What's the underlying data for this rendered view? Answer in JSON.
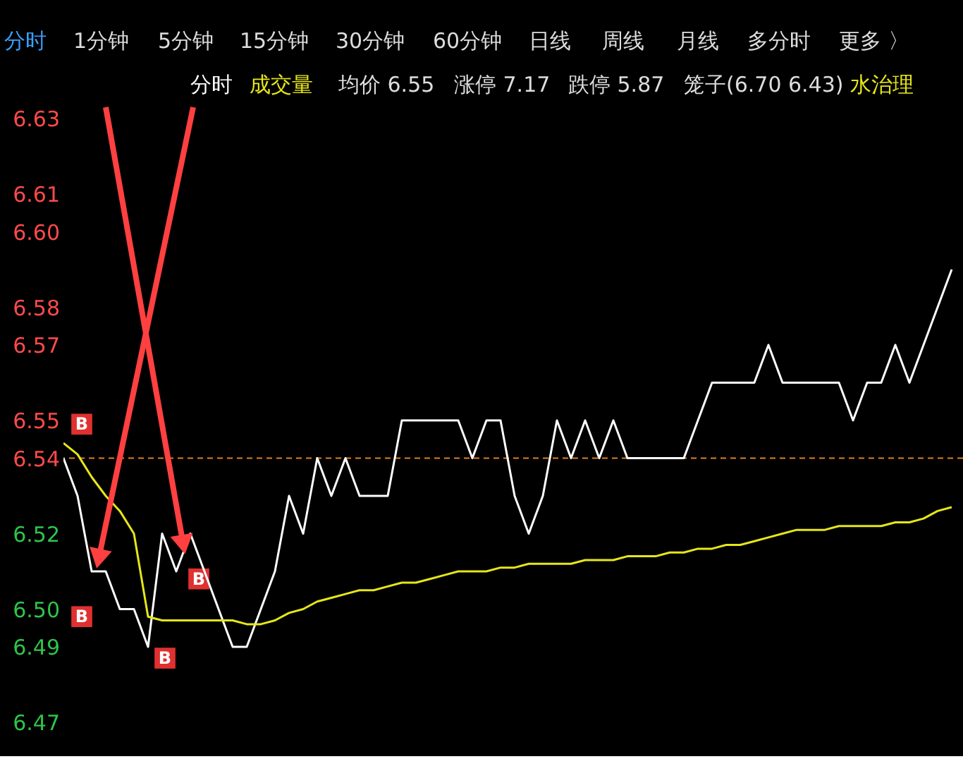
{
  "chart_data": {
    "type": "line",
    "categories": [
      null,
      null,
      null,
      null,
      null,
      null,
      null,
      null,
      null,
      null,
      null,
      null,
      null,
      null,
      null,
      null,
      null,
      null,
      null,
      null,
      null,
      null,
      null,
      null,
      null,
      null,
      null,
      null,
      null,
      null,
      null,
      null,
      null,
      null,
      null,
      null,
      null,
      null,
      null,
      null,
      null,
      null,
      null,
      null,
      null,
      null,
      null,
      null,
      null,
      null,
      null,
      null,
      null,
      null,
      null,
      null,
      null,
      null,
      null,
      null,
      null,
      null,
      null,
      null
    ],
    "series": [
      {
        "color": "#ffffff",
        "values": [
          6.54,
          6.53,
          6.51,
          6.51,
          6.5,
          6.5,
          6.49,
          6.52,
          6.51,
          6.52,
          6.51,
          6.5,
          6.49,
          6.49,
          6.5,
          6.51,
          6.53,
          6.52,
          6.54,
          6.53,
          6.54,
          6.53,
          6.53,
          6.53,
          6.55,
          6.55,
          6.55,
          6.55,
          6.55,
          6.54,
          6.55,
          6.55,
          6.53,
          6.52,
          6.53,
          6.55,
          6.54,
          6.55,
          6.54,
          6.55,
          6.54,
          6.54,
          6.54,
          6.54,
          6.54,
          6.55,
          6.56,
          6.56,
          6.56,
          6.56,
          6.57,
          6.56,
          6.56,
          6.56,
          6.56,
          6.56,
          6.55,
          6.56,
          6.56,
          6.57,
          6.56,
          6.57,
          6.58,
          6.59
        ]
      },
      {
        "color": "#e6e619",
        "values": [
          6.544,
          6.541,
          6.535,
          6.53,
          6.526,
          6.52,
          6.498,
          6.497,
          6.497,
          6.497,
          6.497,
          6.497,
          6.497,
          6.496,
          6.496,
          6.497,
          6.499,
          6.5,
          6.502,
          6.503,
          6.504,
          6.505,
          6.505,
          6.506,
          6.507,
          6.507,
          6.508,
          6.509,
          6.51,
          6.51,
          6.51,
          6.511,
          6.511,
          6.512,
          6.512,
          6.512,
          6.512,
          6.513,
          6.513,
          6.513,
          6.514,
          6.514,
          6.514,
          6.515,
          6.515,
          6.516,
          6.516,
          6.517,
          6.517,
          6.518,
          6.519,
          6.52,
          6.521,
          6.521,
          6.521,
          6.522,
          6.522,
          6.522,
          6.522,
          6.523,
          6.523,
          6.524,
          6.526,
          6.527
        ]
      }
    ],
    "ylim": [
      6.47,
      6.63
    ],
    "yticks": [
      6.47,
      6.49,
      {
        "value": 6.5,
        "label": "6.50"
      },
      6.52,
      6.54,
      6.55,
      6.57,
      6.58,
      {
        "value": 6.6,
        "label": "6.60"
      },
      6.61,
      6.63
    ],
    "ref_lines": [
      {
        "axis": "y",
        "value": 6.54,
        "color": "#e08020",
        "line_style": "dashed"
      }
    ],
    "annotations": [
      "分时",
      "1分钟",
      "5分钟",
      "15分钟",
      "30分钟",
      "60分钟",
      "日线",
      "周线",
      "月线",
      "多分时",
      "更多 〉",
      "分时",
      "成交量",
      "均价 6.55",
      "涨停 7.17",
      "跌停 5.87",
      "笼子(6.70 6.43)",
      "水治理",
      {
        "text": "B",
        "y": 6.549
      },
      {
        "text": "B",
        "y": 6.498
      },
      {
        "text": "B",
        "y": 6.487
      },
      {
        "text": "B",
        "y": 6.508
      }
    ]
  }
}
